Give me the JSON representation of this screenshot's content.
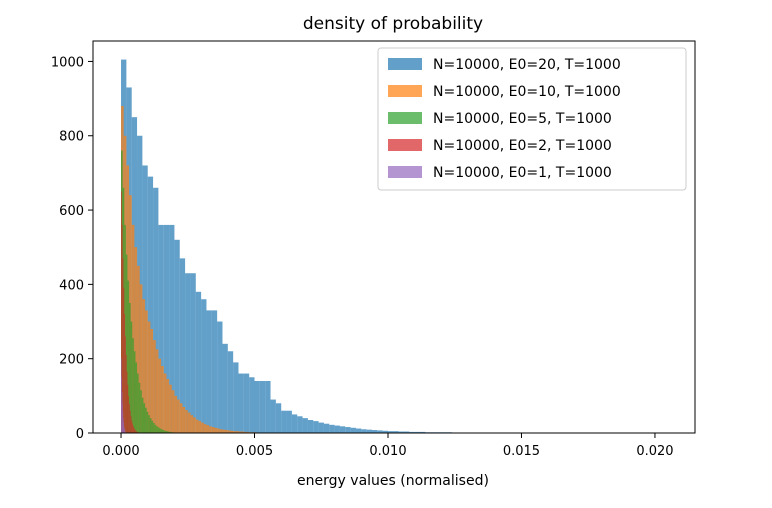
{
  "chart_data": {
    "type": "histogram",
    "title": "density of probability",
    "xlabel": "energy values (normalised)",
    "ylabel": "",
    "xlim": [
      -0.00105,
      0.0215
    ],
    "ylim": [
      0,
      1055
    ],
    "x_ticks": [
      0.0,
      0.005,
      0.01,
      0.015,
      0.02
    ],
    "x_tick_labels": [
      "0.000",
      "0.005",
      "0.010",
      "0.015",
      "0.020"
    ],
    "y_ticks": [
      0,
      200,
      400,
      600,
      800,
      1000
    ],
    "y_tick_labels": [
      "0",
      "200",
      "400",
      "600",
      "800",
      "1000"
    ],
    "legend_position": "top-right",
    "series": [
      {
        "name": "N=10000, E0=20, T=1000",
        "color": "#1f77b4",
        "opacity": 0.7,
        "bin_start": 0.0,
        "bin_width": 0.0002,
        "values": [
          1005,
          930,
          850,
          800,
          720,
          690,
          660,
          560,
          560,
          560,
          520,
          470,
          430,
          430,
          380,
          360,
          330,
          330,
          300,
          240,
          220,
          190,
          160,
          160,
          150,
          140,
          140,
          140,
          90,
          80,
          60,
          60,
          50,
          45,
          40,
          35,
          32,
          28,
          25,
          22,
          20,
          18,
          16,
          14,
          12,
          10,
          9,
          8,
          7,
          6,
          5,
          5,
          4,
          4,
          3,
          3,
          3,
          2,
          2,
          2,
          2,
          2,
          1,
          1,
          1,
          1,
          1,
          0,
          0,
          0,
          0,
          0,
          0,
          0,
          1,
          0,
          0,
          0,
          0,
          0,
          0,
          0,
          0,
          0,
          0,
          0,
          0,
          0,
          0,
          0,
          0,
          0,
          0,
          0,
          0,
          0,
          0,
          0,
          0,
          0,
          1
        ]
      },
      {
        "name": "N=10000, E0=10, T=1000",
        "color": "#ff7f0e",
        "opacity": 0.7,
        "bin_start": 0.0,
        "bin_width": 0.0001,
        "values": [
          880,
          800,
          720,
          640,
          560,
          500,
          450,
          400,
          360,
          330,
          300,
          280,
          250,
          225,
          200,
          180,
          160,
          145,
          130,
          115,
          100,
          90,
          80,
          70,
          62,
          55,
          48,
          42,
          36,
          32,
          28,
          24,
          21,
          18,
          16,
          14,
          12,
          10,
          9,
          8,
          7,
          6,
          5,
          5,
          4,
          4,
          3,
          3,
          2,
          2,
          2,
          1,
          1,
          1,
          1,
          1
        ]
      },
      {
        "name": "N=10000, E0=5, T=1000",
        "color": "#2ca02c",
        "opacity": 0.7,
        "bin_start": 0.0,
        "bin_width": 6e-05,
        "values": [
          760,
          660,
          560,
          480,
          410,
          350,
          300,
          255,
          220,
          190,
          160,
          135,
          115,
          95,
          80,
          68,
          57,
          48,
          40,
          33,
          27,
          22,
          18,
          15,
          12,
          10,
          8,
          6,
          5,
          4,
          3,
          2,
          2,
          1
        ]
      },
      {
        "name": "N=10000, E0=2, T=1000",
        "color": "#d62728",
        "opacity": 0.7,
        "bin_start": 0.0,
        "bin_width": 3e-05,
        "values": [
          650,
          560,
          470,
          390,
          320,
          260,
          210,
          165,
          130,
          100,
          78,
          60,
          45,
          34,
          25,
          18,
          13,
          9,
          6,
          4,
          3,
          2,
          1
        ]
      },
      {
        "name": "N=10000, E0=1, T=1000",
        "color": "#9467bd",
        "opacity": 0.7,
        "bin_start": 0.0,
        "bin_width": 1.5e-05,
        "values": [
          200,
          150,
          110,
          80,
          58,
          40,
          28,
          18,
          12,
          7,
          4,
          2,
          1
        ]
      }
    ]
  }
}
